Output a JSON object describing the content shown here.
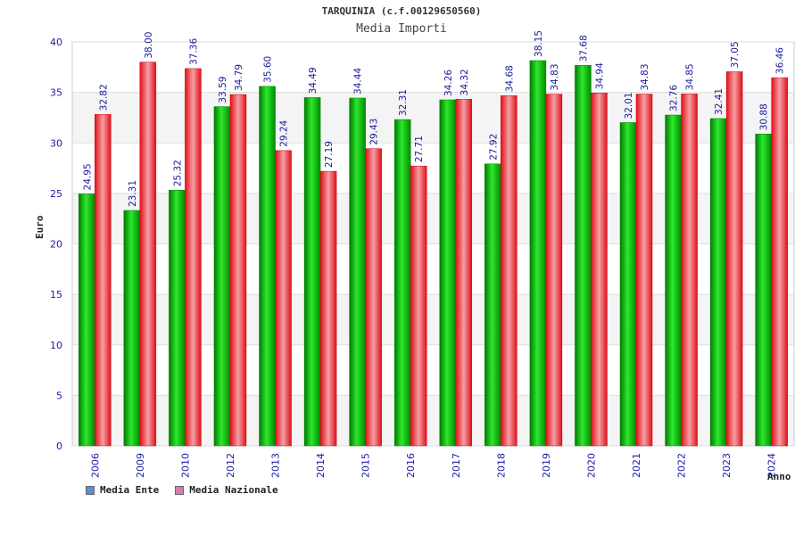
{
  "chart_data": {
    "type": "bar",
    "title": "TARQUINIA (c.f.00129650560)",
    "subtitle": "Media Importi",
    "xlabel": "Anno",
    "ylabel": "Euro",
    "ylim": [
      0,
      40
    ],
    "yticks": [
      0,
      5,
      10,
      15,
      20,
      25,
      30,
      35,
      40
    ],
    "grid": true,
    "legend_position": "bottom-left",
    "categories": [
      "2006",
      "2009",
      "2010",
      "2012",
      "2013",
      "2014",
      "2015",
      "2016",
      "2017",
      "2018",
      "2019",
      "2020",
      "2021",
      "2022",
      "2023",
      "2024"
    ],
    "series": [
      {
        "name": "Media Ente",
        "color": "#00b400",
        "values": [
          24.95,
          23.31,
          25.32,
          33.59,
          35.6,
          34.49,
          34.44,
          32.31,
          34.26,
          27.92,
          38.15,
          37.68,
          32.01,
          32.76,
          32.41,
          30.88
        ],
        "labels": [
          "24.95",
          "23.31",
          "25.32",
          "33.59",
          "35.60",
          "34.49",
          "34.44",
          "32.31",
          "34.26",
          "27.92",
          "38.15",
          "37.68",
          "32.01",
          "32.76",
          "32.41",
          "30.88"
        ]
      },
      {
        "name": "Media Nazionale",
        "color": "#e8202a",
        "values": [
          32.82,
          38.0,
          37.36,
          34.79,
          29.24,
          27.19,
          29.43,
          27.71,
          34.32,
          34.68,
          34.83,
          34.94,
          34.83,
          34.85,
          37.05,
          36.46
        ],
        "labels": [
          "32.82",
          "38.00",
          "37.36",
          "34.79",
          "29.24",
          "27.19",
          "29.43",
          "27.71",
          "34.32",
          "34.68",
          "34.83",
          "34.94",
          "34.83",
          "34.85",
          "37.05",
          "36.46"
        ]
      }
    ]
  },
  "legend": {
    "items": [
      {
        "label": "Media Ente",
        "color": "#5b8fd6"
      },
      {
        "label": "Media Nazionale",
        "color": "#d97bb0"
      }
    ]
  }
}
